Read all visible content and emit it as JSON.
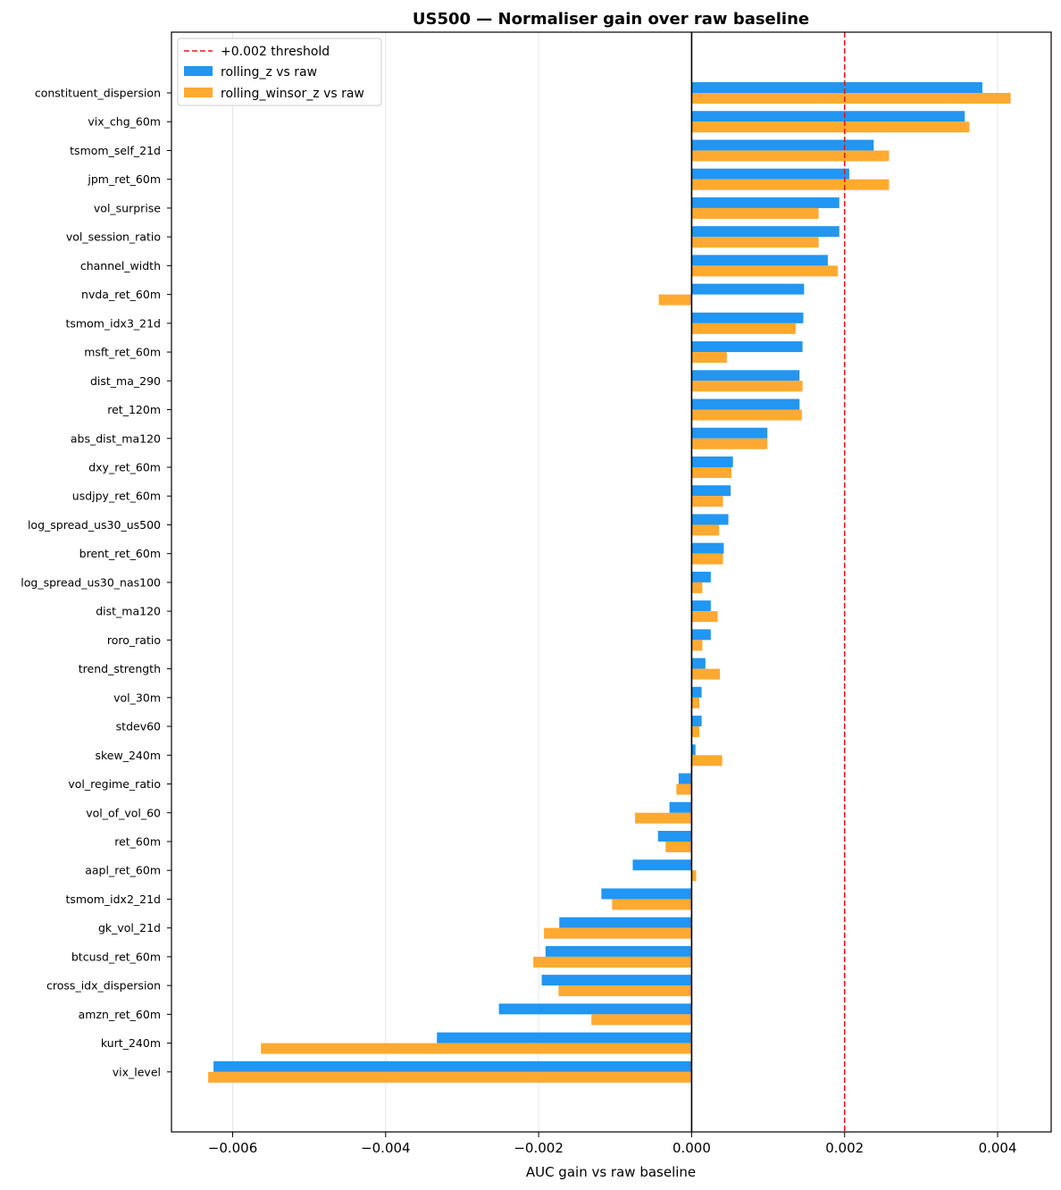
{
  "chart_data": {
    "type": "bar",
    "orientation": "horizontal",
    "title": "US500 — Normaliser gain over raw baseline",
    "xlabel": "AUC gain vs raw baseline",
    "xlim": [
      -0.0068,
      0.0047
    ],
    "xticks": [
      -0.006,
      -0.004,
      -0.002,
      0.0,
      0.002,
      0.004
    ],
    "xtick_labels": [
      "−0.006",
      "−0.004",
      "−0.002",
      "0.000",
      "0.002",
      "0.004"
    ],
    "grid": "x",
    "legend_position": "top-left",
    "threshold": {
      "value": 0.002,
      "label": "+0.002 threshold",
      "color": "#e41a1c"
    },
    "categories": [
      "constituent_dispersion",
      "vix_chg_60m",
      "tsmom_self_21d",
      "jpm_ret_60m",
      "vol_surprise",
      "vol_session_ratio",
      "channel_width",
      "nvda_ret_60m",
      "tsmom_idx3_21d",
      "msft_ret_60m",
      "dist_ma_290",
      "ret_120m",
      "abs_dist_ma120",
      "dxy_ret_60m",
      "usdjpy_ret_60m",
      "log_spread_us30_us500",
      "brent_ret_60m",
      "log_spread_us30_nas100",
      "dist_ma120",
      "roro_ratio",
      "trend_strength",
      "vol_30m",
      "stdev60",
      "skew_240m",
      "vol_regime_ratio",
      "vol_of_vol_60",
      "ret_60m",
      "aapl_ret_60m",
      "tsmom_idx2_21d",
      "gk_vol_21d",
      "btcusd_ret_60m",
      "cross_idx_dispersion",
      "amzn_ret_60m",
      "kurt_240m",
      "vix_level"
    ],
    "series": [
      {
        "name": "rolling_z vs raw",
        "color": "#2196f3",
        "values": [
          0.0038,
          0.00357,
          0.00238,
          0.00206,
          0.00193,
          0.00193,
          0.00178,
          0.00147,
          0.00146,
          0.00145,
          0.00141,
          0.00141,
          0.00099,
          0.00054,
          0.00051,
          0.00048,
          0.00042,
          0.00025,
          0.00025,
          0.00025,
          0.00018,
          0.00013,
          0.00013,
          5e-05,
          -0.00017,
          -0.00029,
          -0.00044,
          -0.00077,
          -0.00118,
          -0.00173,
          -0.00191,
          -0.00196,
          -0.00252,
          -0.00333,
          -0.00625
        ]
      },
      {
        "name": "rolling_winsor_z vs raw",
        "color": "#ffa931",
        "values": [
          0.00417,
          0.00363,
          0.00258,
          0.00258,
          0.00166,
          0.00166,
          0.00191,
          -0.00043,
          0.00136,
          0.00046,
          0.00145,
          0.00144,
          0.00099,
          0.00052,
          0.00041,
          0.00036,
          0.00041,
          0.00014,
          0.00034,
          0.00014,
          0.00037,
          0.0001,
          0.0001,
          0.0004,
          -0.0002,
          -0.00074,
          -0.00034,
          6e-05,
          -0.00104,
          -0.00193,
          -0.00207,
          -0.00174,
          -0.00131,
          -0.00563,
          -0.00632
        ]
      }
    ]
  }
}
